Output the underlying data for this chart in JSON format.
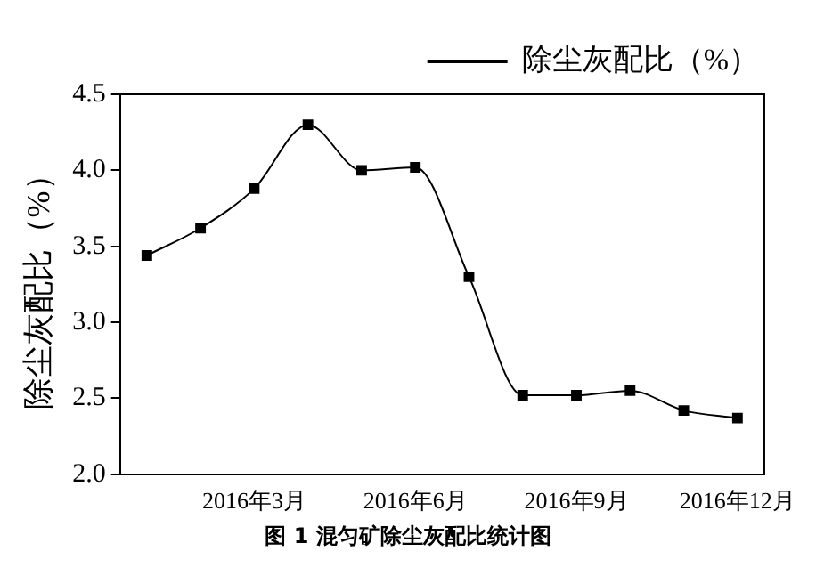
{
  "chart_data": {
    "type": "line",
    "ylabel": "除尘灰配比（%）",
    "categories": [
      null,
      null,
      "2016年3月",
      null,
      null,
      "2016年6月",
      null,
      null,
      "2016年9月",
      null,
      null,
      "2016年12月"
    ],
    "series": [
      {
        "name": "除尘灰配比（%）",
        "color": "#000000",
        "values": [
          3.44,
          3.62,
          3.88,
          4.3,
          4.0,
          4.02,
          3.3,
          2.52,
          2.52,
          2.55,
          2.42,
          2.37
        ]
      }
    ],
    "ylim": [
      2.0,
      4.5
    ],
    "yticks": [
      {
        "value": 2.0,
        "label": "2.0"
      },
      {
        "value": 2.5,
        "label": "2.5"
      },
      {
        "value": 3.0,
        "label": "3.0"
      },
      {
        "value": 3.5,
        "label": "3.5"
      },
      {
        "value": 4.0,
        "label": "4.0"
      },
      {
        "value": 4.5,
        "label": "4.5"
      }
    ],
    "grid": false,
    "legend": "top right",
    "marker": "square",
    "line_style": "solid",
    "annotations": [
      "图 1 混匀矿除尘灰配比统计图"
    ]
  }
}
